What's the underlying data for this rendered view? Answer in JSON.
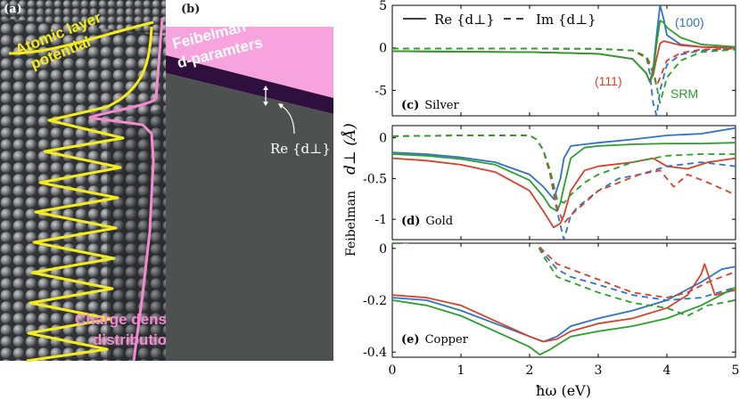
{
  "panel_a": {
    "label": "(a)",
    "atomic_line1": "Atomic layer",
    "atomic_line2": "potential",
    "charge_line1": "Charge density",
    "charge_line2": "distribution",
    "colors": {
      "potential": "#f4ec1c",
      "charge": "#f58ad0",
      "surface": "#3a3c3e"
    }
  },
  "panel_b": {
    "label": "(b)",
    "title_line1": "Feibelman",
    "title_line2": "d-paramters",
    "re_label": "Re {d⊥}",
    "colors": {
      "pink": "#f7a3dd",
      "band": "#2f0f3e",
      "bulk": "#4d5250"
    }
  },
  "chart_data": [
    {
      "type": "line",
      "panel": "(c)",
      "title": "Silver",
      "xlim": [
        0,
        5
      ],
      "ylim": [
        -8,
        5
      ],
      "yticks": [
        5,
        0,
        -5
      ],
      "legend": [
        "Re {d⊥}",
        "Im {d⊥}"
      ],
      "annotations": [
        "(100)",
        "(111)",
        "SRM"
      ],
      "series": [
        {
          "name": "(100) Re",
          "color": "#2f72c8",
          "style": "solid",
          "x": [
            0,
            1,
            2,
            3,
            3.5,
            3.7,
            3.75,
            3.8,
            3.85,
            3.9,
            3.95,
            4.0,
            4.2,
            4.5,
            5
          ],
          "y": [
            -0.4,
            -0.45,
            -0.5,
            -0.7,
            -1.3,
            -3.0,
            -4.0,
            -2.5,
            1.5,
            5.0,
            3.5,
            1.5,
            0.4,
            0.1,
            0.0
          ]
        },
        {
          "name": "(111) Re",
          "color": "#d9412a",
          "style": "solid",
          "x": [
            0,
            1,
            2,
            3,
            3.5,
            3.7,
            3.75,
            3.8,
            3.85,
            3.9,
            3.95,
            4.0,
            4.2,
            4.5,
            5
          ],
          "y": [
            -0.4,
            -0.45,
            -0.5,
            -0.7,
            -1.3,
            -3.0,
            -4.0,
            -3.2,
            -1.2,
            0.5,
            0.8,
            0.7,
            0.3,
            0.1,
            0.0
          ]
        },
        {
          "name": "SRM Re",
          "color": "#2aa02a",
          "style": "solid",
          "x": [
            0,
            1,
            2,
            3,
            3.5,
            3.7,
            3.75,
            3.8,
            3.85,
            3.9,
            3.95,
            4.0,
            4.2,
            4.5,
            5
          ],
          "y": [
            -0.4,
            -0.45,
            -0.5,
            -0.7,
            -1.3,
            -3.0,
            -4.0,
            -2.8,
            0.5,
            3.2,
            3.0,
            2.4,
            1.2,
            0.4,
            0.1
          ]
        },
        {
          "name": "(100) Im",
          "color": "#2f72c8",
          "style": "dashed",
          "x": [
            0,
            1,
            2,
            3,
            3.5,
            3.7,
            3.75,
            3.8,
            3.85,
            3.9,
            4.0,
            4.2,
            4.5,
            5
          ],
          "y": [
            -0.1,
            -0.1,
            -0.1,
            -0.12,
            -0.3,
            -1.0,
            -3.0,
            -6.5,
            -8.0,
            -5.0,
            -2.0,
            -0.8,
            -0.3,
            -0.1
          ]
        },
        {
          "name": "(111) Im",
          "color": "#d9412a",
          "style": "dashed",
          "x": [
            0,
            1,
            2,
            3,
            3.5,
            3.7,
            3.8,
            3.85,
            3.9,
            4.0,
            4.2,
            4.5,
            5
          ],
          "y": [
            -0.1,
            -0.1,
            -0.1,
            -0.12,
            -0.3,
            -1.2,
            -3.0,
            -4.5,
            -3.5,
            -1.5,
            -0.6,
            -0.2,
            -0.1
          ]
        },
        {
          "name": "SRM Im",
          "color": "#2aa02a",
          "style": "dashed",
          "x": [
            0,
            1,
            2,
            3,
            3.5,
            3.7,
            3.8,
            3.85,
            3.9,
            4.0,
            4.2,
            4.5,
            5
          ],
          "y": [
            -0.1,
            -0.1,
            -0.1,
            -0.12,
            -0.3,
            -1.0,
            -2.5,
            -4.5,
            -6.5,
            -3.5,
            -1.5,
            -0.5,
            -0.2
          ]
        }
      ]
    },
    {
      "type": "line",
      "panel": "(d)",
      "title": "Gold",
      "xlim": [
        0,
        5
      ],
      "ylim": [
        -1.25,
        0.15
      ],
      "yticks": [
        0,
        -0.5,
        -1
      ],
      "series": [
        {
          "name": "(100) Re",
          "color": "#2f72c8",
          "style": "solid",
          "x": [
            0,
            0.5,
            1,
            1.5,
            2,
            2.2,
            2.35,
            2.45,
            2.5,
            2.6,
            2.8,
            3,
            3.5,
            4,
            4.5,
            5
          ],
          "y": [
            -0.18,
            -0.2,
            -0.24,
            -0.3,
            -0.45,
            -0.6,
            -0.75,
            -0.5,
            -0.25,
            -0.1,
            -0.08,
            -0.06,
            -0.02,
            0.03,
            0.05,
            0.12
          ]
        },
        {
          "name": "(111) Re",
          "color": "#d9412a",
          "style": "solid",
          "x": [
            0,
            0.5,
            1,
            1.5,
            2,
            2.2,
            2.35,
            2.45,
            2.5,
            2.6,
            2.8,
            3,
            3.5,
            3.8,
            4,
            4.3,
            4.6,
            5
          ],
          "y": [
            -0.25,
            -0.28,
            -0.33,
            -0.42,
            -0.65,
            -0.9,
            -1.1,
            -1.05,
            -0.95,
            -0.65,
            -0.4,
            -0.35,
            -0.3,
            -0.25,
            -0.35,
            -0.38,
            -0.3,
            -0.25
          ]
        },
        {
          "name": "SRM Re",
          "color": "#2aa02a",
          "style": "solid",
          "x": [
            0,
            0.5,
            1,
            1.5,
            2,
            2.2,
            2.3,
            2.4,
            2.45,
            2.5,
            2.6,
            2.8,
            3,
            3.5,
            4,
            4.5,
            5
          ],
          "y": [
            -0.2,
            -0.22,
            -0.26,
            -0.33,
            -0.52,
            -0.72,
            -0.85,
            -0.9,
            -0.8,
            -0.6,
            -0.25,
            -0.12,
            -0.1,
            -0.08,
            -0.07,
            -0.07,
            -0.06
          ]
        },
        {
          "name": "(100) Im",
          "color": "#2f72c8",
          "style": "dashed",
          "x": [
            0,
            1,
            2,
            2.1,
            2.2,
            2.3,
            2.4,
            2.5,
            2.6,
            2.7,
            3,
            3.3,
            3.6,
            4,
            4.5,
            5
          ],
          "y": [
            0.02,
            0.03,
            0.03,
            -0.02,
            -0.15,
            -0.45,
            -0.9,
            -1.25,
            -0.95,
            -0.85,
            -0.65,
            -0.5,
            -0.45,
            -0.35,
            -0.3,
            -0.35
          ]
        },
        {
          "name": "(111) Im",
          "color": "#d9412a",
          "style": "dashed",
          "x": [
            0,
            1,
            2,
            2.1,
            2.2,
            2.3,
            2.4,
            2.5,
            2.6,
            2.8,
            3,
            3.3,
            3.6,
            3.9,
            4.1,
            4.3,
            4.6,
            5
          ],
          "y": [
            0.02,
            0.03,
            0.03,
            -0.02,
            -0.15,
            -0.45,
            -0.85,
            -1.05,
            -0.95,
            -0.8,
            -0.65,
            -0.55,
            -0.45,
            -0.4,
            -0.6,
            -0.45,
            -0.55,
            -0.7
          ]
        },
        {
          "name": "SRM Im",
          "color": "#2aa02a",
          "style": "dashed",
          "x": [
            0,
            1,
            2,
            2.1,
            2.2,
            2.3,
            2.4,
            2.5,
            2.6,
            2.8,
            3,
            3.5,
            4,
            4.5,
            5
          ],
          "y": [
            0.02,
            0.03,
            0.03,
            -0.02,
            -0.15,
            -0.4,
            -0.75,
            -0.8,
            -0.7,
            -0.55,
            -0.45,
            -0.3,
            -0.22,
            -0.2,
            -0.2
          ]
        }
      ]
    },
    {
      "type": "line",
      "panel": "(e)",
      "title": "Copper",
      "xlim": [
        0,
        5
      ],
      "ylim": [
        -0.42,
        0.02
      ],
      "yticks": [
        0,
        -0.2,
        -0.4
      ],
      "series": [
        {
          "name": "(100) Re",
          "color": "#2f72c8",
          "style": "solid",
          "x": [
            0,
            0.5,
            1,
            1.5,
            2,
            2.2,
            2.4,
            2.6,
            3,
            3.5,
            4,
            4.5,
            4.8,
            5
          ],
          "y": [
            -0.19,
            -0.2,
            -0.24,
            -0.29,
            -0.34,
            -0.36,
            -0.34,
            -0.3,
            -0.27,
            -0.24,
            -0.2,
            -0.13,
            -0.08,
            -0.07
          ]
        },
        {
          "name": "(111) Re",
          "color": "#d9412a",
          "style": "solid",
          "x": [
            0,
            0.5,
            1,
            1.5,
            2,
            2.2,
            2.4,
            2.6,
            3,
            3.5,
            4,
            4.3,
            4.5,
            4.55,
            4.6,
            4.7,
            5
          ],
          "y": [
            -0.18,
            -0.19,
            -0.22,
            -0.28,
            -0.34,
            -0.36,
            -0.35,
            -0.32,
            -0.29,
            -0.27,
            -0.23,
            -0.18,
            -0.1,
            -0.06,
            -0.1,
            -0.18,
            -0.16
          ]
        },
        {
          "name": "SRM Re",
          "color": "#2aa02a",
          "style": "solid",
          "x": [
            0,
            0.5,
            1,
            1.5,
            2,
            2.15,
            2.3,
            2.6,
            3,
            3.5,
            4,
            4.5,
            5
          ],
          "y": [
            -0.2,
            -0.22,
            -0.26,
            -0.32,
            -0.38,
            -0.41,
            -0.39,
            -0.34,
            -0.32,
            -0.3,
            -0.27,
            -0.22,
            -0.15
          ]
        },
        {
          "name": "(100) Im",
          "color": "#2f72c8",
          "style": "dashed",
          "x": [
            0,
            1,
            2,
            2.1,
            2.2,
            2.4,
            2.6,
            3,
            3.5,
            4,
            4.5,
            5
          ],
          "y": [
            0.02,
            0.03,
            0.03,
            0.02,
            -0.02,
            -0.08,
            -0.11,
            -0.14,
            -0.18,
            -0.2,
            -0.19,
            -0.15
          ]
        },
        {
          "name": "(111) Im",
          "color": "#d9412a",
          "style": "dashed",
          "x": [
            0,
            1,
            2,
            2.1,
            2.2,
            2.4,
            2.6,
            3,
            3.5,
            4,
            4.3,
            4.6,
            5
          ],
          "y": [
            0.02,
            0.03,
            0.03,
            0.02,
            -0.01,
            -0.06,
            -0.08,
            -0.12,
            -0.17,
            -0.19,
            -0.17,
            -0.13,
            -0.09
          ]
        },
        {
          "name": "SRM Im",
          "color": "#2aa02a",
          "style": "dashed",
          "x": [
            0,
            1,
            2,
            2.1,
            2.2,
            2.4,
            2.6,
            3,
            3.5,
            4,
            4.3,
            4.6,
            5
          ],
          "y": [
            0.02,
            0.03,
            0.03,
            0.02,
            -0.03,
            -0.11,
            -0.13,
            -0.17,
            -0.21,
            -0.23,
            -0.26,
            -0.22,
            -0.2
          ]
        }
      ]
    }
  ],
  "axes": {
    "ylabel_word": "Feibelman",
    "ylabel_symbol": "d⊥ (Å)",
    "xlabel": "ħω (eV)",
    "xticks": [
      "0",
      "1",
      "2",
      "3",
      "4",
      "5"
    ]
  }
}
